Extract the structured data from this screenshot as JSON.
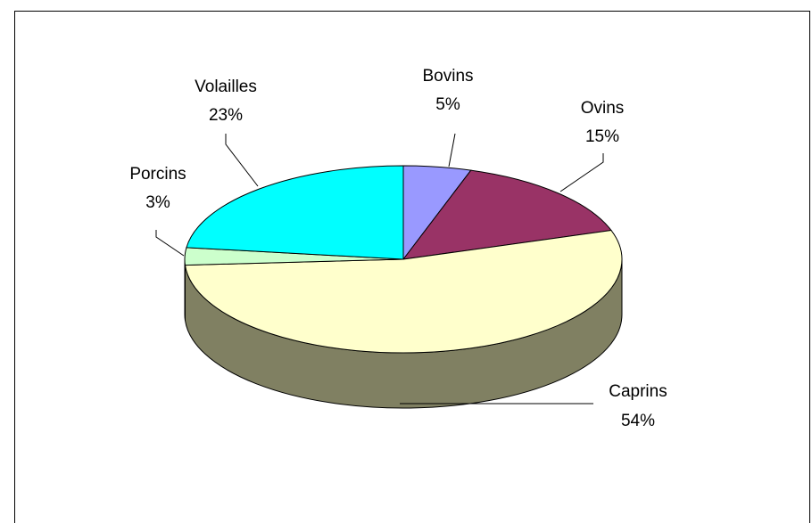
{
  "chart_data": {
    "type": "pie",
    "three_d": true,
    "title": "",
    "slices": [
      {
        "name": "Bovins",
        "percent_label": "5%",
        "value": 5,
        "color": "#9999FF"
      },
      {
        "name": "Ovins",
        "percent_label": "15%",
        "value": 15,
        "color": "#993366"
      },
      {
        "name": "Caprins",
        "percent_label": "54%",
        "value": 54,
        "color": "#FFFFCC"
      },
      {
        "name": "Porcins",
        "percent_label": "3%",
        "value": 3,
        "color": "#CCFFCC"
      },
      {
        "name": "Volailles",
        "percent_label": "23%",
        "value": 23,
        "color": "#00FFFF"
      }
    ],
    "side_color": "#808062",
    "legend": "none"
  }
}
